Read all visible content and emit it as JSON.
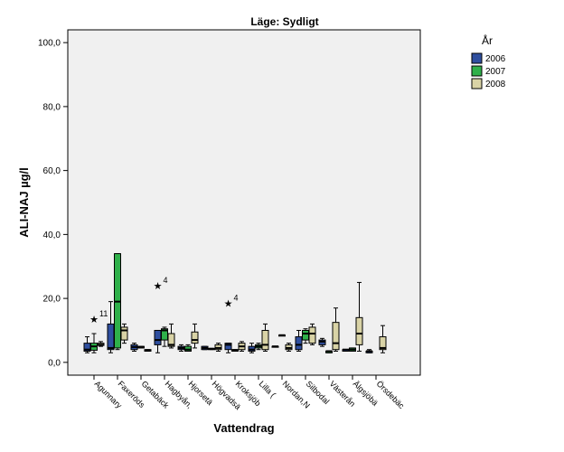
{
  "chart_data": {
    "type": "box",
    "title": "Läge: Sydligt",
    "xlabel": "Vattendrag",
    "ylabel": "ALI-NAJ µg/l",
    "ylim": [
      -4,
      104
    ],
    "yticks": [
      "0,0",
      "20,0",
      "40,0",
      "60,0",
      "80,0",
      "100,0"
    ],
    "ytick_values": [
      0,
      20,
      40,
      60,
      80,
      100
    ],
    "grid": false,
    "legend": {
      "title": "År",
      "placement": "right",
      "entries": [
        {
          "label": "2006",
          "color": "#2f4f9f"
        },
        {
          "label": "2007",
          "color": "#2fb04a"
        },
        {
          "label": "2008",
          "color": "#d9d3a6"
        }
      ]
    },
    "categories": [
      "Agunnary",
      "Faxeröds",
      "Getabäck",
      "Hagbyån,",
      "Hjorsetä",
      "Högvadsä",
      "Kroksjöb",
      "Lilla (",
      "Nordan,N",
      "Silbodal",
      "Västerån",
      "Älgsjöbä",
      "Örsdebäc"
    ],
    "boxes": [
      {
        "cat": 0,
        "year": 0,
        "min": 3,
        "q1": 3.5,
        "median": 4,
        "q3": 6,
        "max": 8
      },
      {
        "cat": 0,
        "year": 1,
        "min": 3,
        "q1": 3.8,
        "median": 5,
        "q3": 6,
        "max": 9
      },
      {
        "cat": 0,
        "year": 2,
        "min": 5,
        "q1": 5.3,
        "median": 5.5,
        "q3": 6,
        "max": 6.5
      },
      {
        "cat": 1,
        "year": 0,
        "min": 3,
        "q1": 4,
        "median": 4.5,
        "q3": 12,
        "max": 19
      },
      {
        "cat": 1,
        "year": 1,
        "min": 4,
        "q1": 4.5,
        "median": 19,
        "q3": 34,
        "max": 34
      },
      {
        "cat": 1,
        "year": 2,
        "min": 6,
        "q1": 7,
        "median": 10,
        "q3": 11,
        "max": 12
      },
      {
        "cat": 2,
        "year": 0,
        "min": 3.5,
        "q1": 4,
        "median": 4.8,
        "q3": 5.5,
        "max": 6
      },
      {
        "cat": 2,
        "year": 1,
        "min": 4.5,
        "q1": 4.5,
        "median": 4.8,
        "q3": 5,
        "max": 5
      },
      {
        "cat": 2,
        "year": 2,
        "min": 3.5,
        "q1": 3.5,
        "median": 3.8,
        "q3": 4,
        "max": 4
      },
      {
        "cat": 3,
        "year": 0,
        "min": 3,
        "q1": 5.5,
        "median": 7,
        "q3": 10,
        "max": 10
      },
      {
        "cat": 3,
        "year": 1,
        "min": 5,
        "q1": 7,
        "median": 10,
        "q3": 10.5,
        "max": 11
      },
      {
        "cat": 3,
        "year": 2,
        "min": 4.5,
        "q1": 5,
        "median": 5.5,
        "q3": 9,
        "max": 12
      },
      {
        "cat": 4,
        "year": 0,
        "min": 3.5,
        "q1": 4,
        "median": 4.5,
        "q3": 5,
        "max": 5.5
      },
      {
        "cat": 4,
        "year": 1,
        "min": 3.5,
        "q1": 3.5,
        "median": 4,
        "q3": 5,
        "max": 5.5
      },
      {
        "cat": 4,
        "year": 2,
        "min": 4.5,
        "q1": 6,
        "median": 7,
        "q3": 9.5,
        "max": 12
      },
      {
        "cat": 5,
        "year": 0,
        "min": 4,
        "q1": 4,
        "median": 4.5,
        "q3": 5,
        "max": 5
      },
      {
        "cat": 5,
        "year": 1,
        "min": 4,
        "q1": 4,
        "median": 4.2,
        "q3": 4.4,
        "max": 4.4
      },
      {
        "cat": 5,
        "year": 2,
        "min": 3.5,
        "q1": 4,
        "median": 4.5,
        "q3": 5.5,
        "max": 6
      },
      {
        "cat": 6,
        "year": 0,
        "min": 3,
        "q1": 4,
        "median": 5.5,
        "q3": 6,
        "max": 6
      },
      {
        "cat": 6,
        "year": 1,
        "min": 3.5,
        "q1": 3.5,
        "median": 3.8,
        "q3": 4,
        "max": 4
      },
      {
        "cat": 6,
        "year": 2,
        "min": 3.5,
        "q1": 4,
        "median": 5,
        "q3": 6,
        "max": 6.5
      },
      {
        "cat": 7,
        "year": 0,
        "min": 3,
        "q1": 3.5,
        "median": 4,
        "q3": 5,
        "max": 6
      },
      {
        "cat": 7,
        "year": 1,
        "min": 4,
        "q1": 4.5,
        "median": 5,
        "q3": 5.5,
        "max": 6
      },
      {
        "cat": 7,
        "year": 2,
        "min": 3.5,
        "q1": 4,
        "median": 5.5,
        "q3": 10,
        "max": 12
      },
      {
        "cat": 8,
        "year": 0,
        "min": 5,
        "q1": 5,
        "median": 5,
        "q3": 5,
        "max": 5
      },
      {
        "cat": 8,
        "year": 1,
        "min": 8.5,
        "q1": 8.5,
        "median": 8.5,
        "q3": 8.5,
        "max": 8.5
      },
      {
        "cat": 8,
        "year": 2,
        "min": 3.5,
        "q1": 4,
        "median": 4.5,
        "q3": 5.5,
        "max": 6
      },
      {
        "cat": 9,
        "year": 0,
        "min": 3.5,
        "q1": 4,
        "median": 5.5,
        "q3": 8,
        "max": 10
      },
      {
        "cat": 9,
        "year": 1,
        "min": 6,
        "q1": 7,
        "median": 9,
        "q3": 10,
        "max": 10.5
      },
      {
        "cat": 9,
        "year": 2,
        "min": 5.5,
        "q1": 6,
        "median": 9,
        "q3": 11,
        "max": 12
      },
      {
        "cat": 10,
        "year": 0,
        "min": 5,
        "q1": 5.5,
        "median": 6.5,
        "q3": 7,
        "max": 7.5
      },
      {
        "cat": 10,
        "year": 1,
        "min": 3,
        "q1": 3,
        "median": 3.5,
        "q3": 3.5,
        "max": 3.5
      },
      {
        "cat": 10,
        "year": 2,
        "min": 3.5,
        "q1": 4,
        "median": 6,
        "q3": 12.5,
        "max": 17
      },
      {
        "cat": 11,
        "year": 0,
        "min": 3.5,
        "q1": 3.5,
        "median": 4,
        "q3": 4,
        "max": 4
      },
      {
        "cat": 11,
        "year": 1,
        "min": 3.5,
        "q1": 3.5,
        "median": 4,
        "q3": 4.5,
        "max": 4.5
      },
      {
        "cat": 11,
        "year": 2,
        "min": 3.5,
        "q1": 5.5,
        "median": 9,
        "q3": 14,
        "max": 25
      },
      {
        "cat": 12,
        "year": 0,
        "min": 3,
        "q1": 3,
        "median": 3.5,
        "q3": 3.5,
        "max": 4
      },
      {
        "cat": 12,
        "year": 2,
        "min": 3,
        "q1": 4,
        "median": 4.5,
        "q3": 8,
        "max": 11.5
      }
    ],
    "outliers": [
      {
        "cat": 0,
        "year": 1,
        "value": 13.5,
        "label": "11"
      },
      {
        "cat": 3,
        "year": 0,
        "value": 24,
        "label": "4"
      },
      {
        "cat": 6,
        "year": 0,
        "value": 18.5,
        "label": "4"
      }
    ]
  }
}
